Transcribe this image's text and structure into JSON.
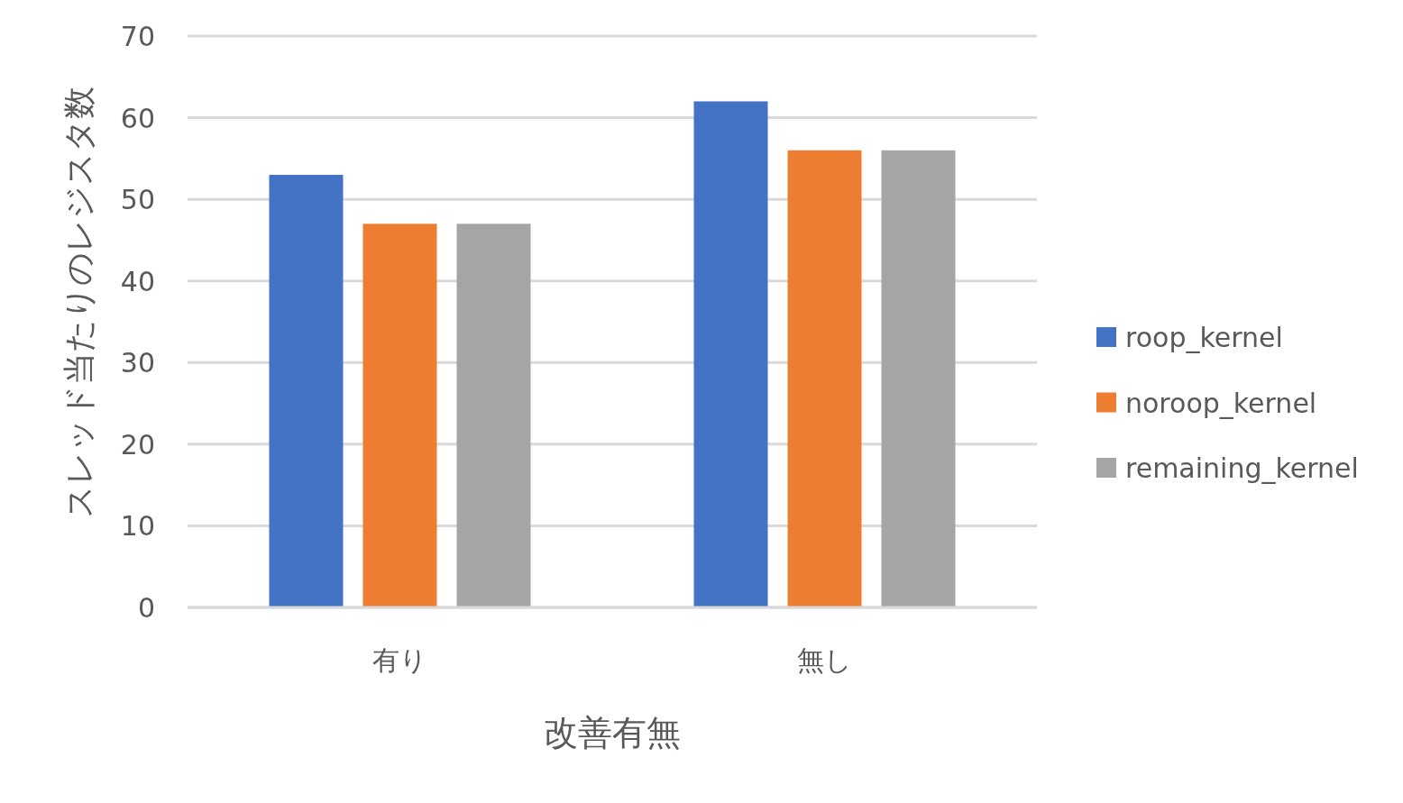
{
  "chart_data": {
    "type": "bar",
    "xlabel": "改善有無",
    "ylabel": "スレッド当たりのレジスタ数",
    "categories": [
      "有り",
      "無し"
    ],
    "series": [
      {
        "name": "roop_kernel",
        "color": "#4472c4",
        "values": [
          53,
          62
        ]
      },
      {
        "name": "noroop_kernel",
        "color": "#ed7d31",
        "values": [
          47,
          56
        ]
      },
      {
        "name": "remaining_kernel",
        "color": "#a5a5a5",
        "values": [
          47,
          56
        ]
      }
    ],
    "ylim": [
      0,
      70
    ],
    "yticks": [
      0,
      10,
      20,
      30,
      40,
      50,
      60,
      70
    ],
    "grid": "y",
    "legend": "right"
  }
}
